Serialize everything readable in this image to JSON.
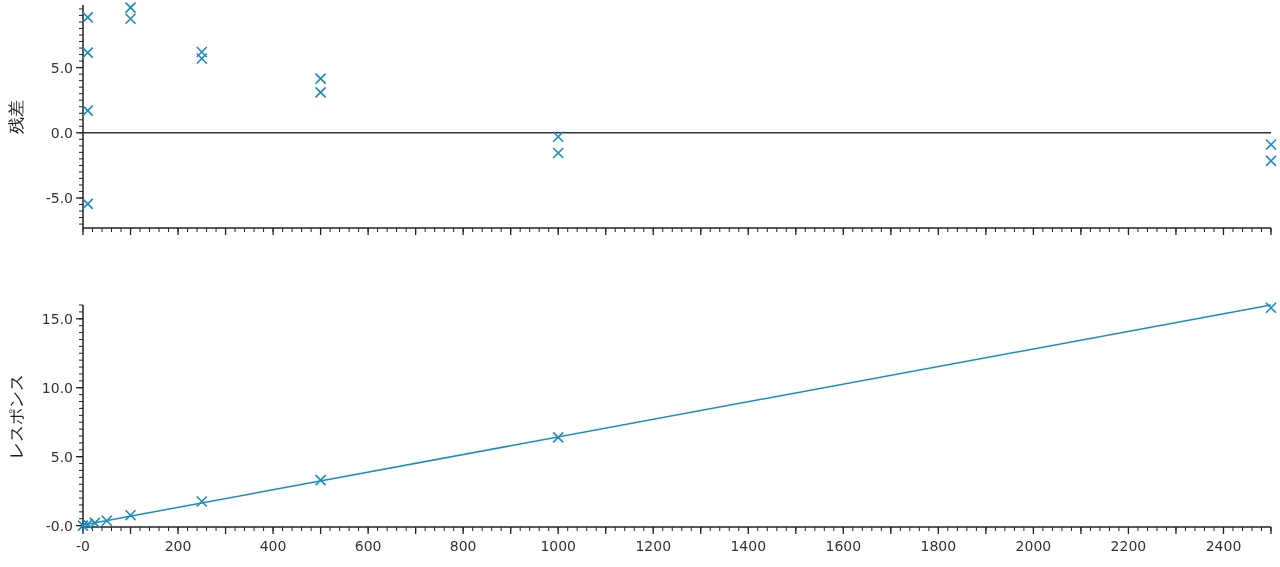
{
  "chart_data": [
    {
      "type": "scatter",
      "ylabel": "残差",
      "color": "#1a8cc0",
      "marker": "cross",
      "tick_labels": "y",
      "x": [
        10,
        10,
        10,
        10,
        100,
        100,
        250,
        250,
        500,
        500,
        1000,
        1000,
        2500,
        2500
      ],
      "values": [
        8.85,
        6.15,
        1.7,
        -5.45,
        9.6,
        8.75,
        6.2,
        5.7,
        4.15,
        3.1,
        -0.3,
        -1.55,
        -0.9,
        -2.15
      ],
      "xlim": [
        0,
        2500
      ],
      "ylim": [
        -7.3,
        9.8
      ],
      "xticks": [
        {
          "value": 0,
          "label": null
        },
        {
          "value": 100,
          "label": null
        },
        {
          "value": 200,
          "label": null
        },
        {
          "value": 300,
          "label": null
        },
        {
          "value": 400,
          "label": null
        },
        {
          "value": 500,
          "label": null
        },
        {
          "value": 600,
          "label": null
        },
        {
          "value": 700,
          "label": null
        },
        {
          "value": 800,
          "label": null
        },
        {
          "value": 900,
          "label": null
        },
        {
          "value": 1000,
          "label": null
        },
        {
          "value": 1100,
          "label": null
        },
        {
          "value": 1200,
          "label": null
        },
        {
          "value": 1300,
          "label": null
        },
        {
          "value": 1400,
          "label": null
        },
        {
          "value": 1500,
          "label": null
        },
        {
          "value": 1600,
          "label": null
        },
        {
          "value": 1700,
          "label": null
        },
        {
          "value": 1800,
          "label": null
        },
        {
          "value": 1900,
          "label": null
        },
        {
          "value": 2000,
          "label": null
        },
        {
          "value": 2100,
          "label": null
        },
        {
          "value": 2200,
          "label": null
        },
        {
          "value": 2300,
          "label": null
        },
        {
          "value": 2400,
          "label": null
        },
        {
          "value": 2500,
          "label": null
        }
      ],
      "yticks": [
        {
          "value": -5,
          "label": "-5.0"
        },
        {
          "value": 0,
          "label": "0.0"
        },
        {
          "value": 5,
          "label": "5.0"
        }
      ],
      "ref_lines": [
        {
          "axis": "y",
          "value": 0,
          "color": "#333333"
        }
      ]
    },
    {
      "type": "scatter",
      "ylabel": "レスポンス",
      "marker": "cross",
      "series": [
        {
          "color": "#1a8cc0",
          "x": [
            0,
            10,
            25,
            50,
            100,
            250,
            500,
            1000,
            2500
          ],
          "values": [
            0,
            0.1,
            0.2,
            0.35,
            0.75,
            1.75,
            3.3,
            6.4,
            15.8
          ]
        },
        {
          "type": "line",
          "color": "#1a8cc0",
          "marker": "none",
          "x": [
            0,
            2500
          ],
          "values": [
            0.05,
            16.0
          ]
        }
      ],
      "xlim": [
        0,
        2500
      ],
      "ylim": [
        -0.1,
        16
      ],
      "xticks": [
        {
          "value": 0,
          "label": "-0"
        },
        {
          "value": 100,
          "label": null
        },
        {
          "value": 200,
          "label": "200"
        },
        {
          "value": 300,
          "label": null
        },
        {
          "value": 400,
          "label": "400"
        },
        {
          "value": 500,
          "label": null
        },
        {
          "value": 600,
          "label": "600"
        },
        {
          "value": 700,
          "label": null
        },
        {
          "value": 800,
          "label": "800"
        },
        {
          "value": 900,
          "label": null
        },
        {
          "value": 1000,
          "label": "1000"
        },
        {
          "value": 1100,
          "label": null
        },
        {
          "value": 1200,
          "label": "1200"
        },
        {
          "value": 1300,
          "label": null
        },
        {
          "value": 1400,
          "label": "1400"
        },
        {
          "value": 1500,
          "label": null
        },
        {
          "value": 1600,
          "label": "1600"
        },
        {
          "value": 1700,
          "label": null
        },
        {
          "value": 1800,
          "label": "1800"
        },
        {
          "value": 1900,
          "label": null
        },
        {
          "value": 2000,
          "label": "2000"
        },
        {
          "value": 2100,
          "label": null
        },
        {
          "value": 2200,
          "label": "2200"
        },
        {
          "value": 2300,
          "label": null
        },
        {
          "value": 2400,
          "label": "2400"
        },
        {
          "value": 2500,
          "label": null
        }
      ],
      "yticks": [
        {
          "value": 0,
          "label": "-0.0"
        },
        {
          "value": 5,
          "label": "5.0"
        },
        {
          "value": 10,
          "label": "10.0"
        },
        {
          "value": 15,
          "label": "15.0"
        }
      ]
    }
  ]
}
